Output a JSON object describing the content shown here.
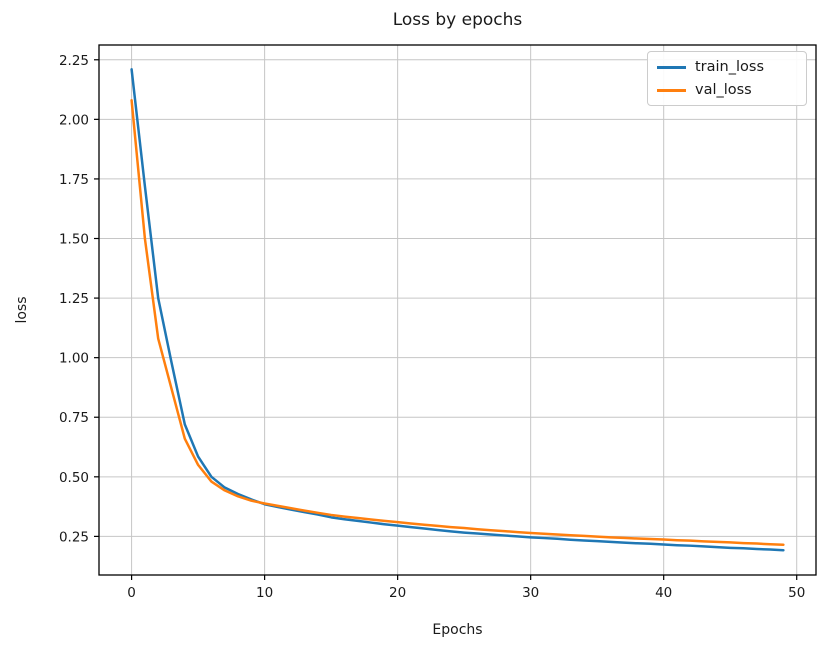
{
  "chart_data": {
    "type": "line",
    "title": "Loss by epochs",
    "xlabel": "Epochs",
    "ylabel": "loss",
    "grid": true,
    "legend_position": "upper right",
    "xlim": [
      -2.45,
      51.45
    ],
    "ylim": [
      0.088,
      2.312
    ],
    "xticks": [
      0,
      10,
      20,
      30,
      40,
      50
    ],
    "yticks": [
      0.25,
      0.5,
      0.75,
      1.0,
      1.25,
      1.5,
      1.75,
      2.0,
      2.25
    ],
    "x": [
      0,
      1,
      2,
      3,
      4,
      5,
      6,
      7,
      8,
      9,
      10,
      11,
      12,
      13,
      14,
      15,
      16,
      17,
      18,
      19,
      20,
      21,
      22,
      23,
      24,
      25,
      26,
      27,
      28,
      29,
      30,
      31,
      32,
      33,
      34,
      35,
      36,
      37,
      38,
      39,
      40,
      41,
      42,
      43,
      44,
      45,
      46,
      47,
      48,
      49
    ],
    "series": [
      {
        "name": "train_loss",
        "color": "#1f77b4",
        "values": [
          2.21,
          1.72,
          1.25,
          0.98,
          0.72,
          0.585,
          0.5,
          0.455,
          0.428,
          0.405,
          0.385,
          0.373,
          0.362,
          0.352,
          0.342,
          0.33,
          0.322,
          0.315,
          0.308,
          0.301,
          0.295,
          0.289,
          0.283,
          0.277,
          0.271,
          0.266,
          0.262,
          0.258,
          0.254,
          0.25,
          0.246,
          0.243,
          0.24,
          0.236,
          0.233,
          0.23,
          0.227,
          0.224,
          0.221,
          0.219,
          0.216,
          0.213,
          0.211,
          0.208,
          0.205,
          0.202,
          0.2,
          0.197,
          0.195,
          0.192
        ]
      },
      {
        "name": "val_loss",
        "color": "#ff7f0e",
        "values": [
          2.08,
          1.5,
          1.08,
          0.87,
          0.66,
          0.55,
          0.48,
          0.443,
          0.418,
          0.4,
          0.388,
          0.378,
          0.368,
          0.358,
          0.349,
          0.34,
          0.333,
          0.327,
          0.321,
          0.315,
          0.31,
          0.304,
          0.299,
          0.294,
          0.289,
          0.285,
          0.28,
          0.276,
          0.272,
          0.268,
          0.264,
          0.261,
          0.258,
          0.255,
          0.252,
          0.249,
          0.246,
          0.244,
          0.241,
          0.239,
          0.237,
          0.234,
          0.232,
          0.229,
          0.227,
          0.225,
          0.222,
          0.22,
          0.217,
          0.215
        ]
      }
    ],
    "style": {
      "grid_color": "#c6c6c6",
      "spine_color": "#000000",
      "tick_label_color": "#1a1a1a",
      "line_width": 2.5
    }
  }
}
